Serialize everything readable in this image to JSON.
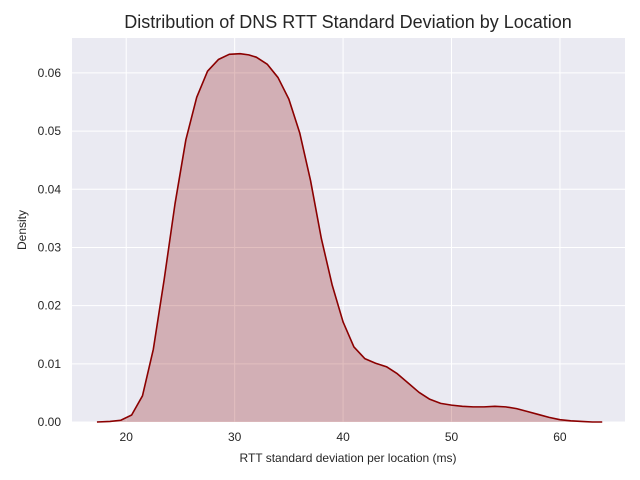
{
  "chart_data": {
    "type": "area",
    "title": "Distribution of DNS RTT Standard Deviation by Location",
    "xlabel": "RTT standard deviation per location (ms)",
    "ylabel": "Density",
    "xlim": [
      15,
      66
    ],
    "ylim": [
      0,
      0.066
    ],
    "xticks": [
      20,
      30,
      40,
      50,
      60
    ],
    "yticks": [
      0.0,
      0.01,
      0.02,
      0.03,
      0.04,
      0.05,
      0.06
    ],
    "ytick_labels": [
      "0.00",
      "0.01",
      "0.02",
      "0.03",
      "0.04",
      "0.05",
      "0.06"
    ],
    "grid": true,
    "series": [
      {
        "color": "#8b0000",
        "fill_color": "#8b0000",
        "x": [
          17.3,
          18.5,
          19.5,
          20.5,
          21.5,
          22.5,
          23.5,
          24.5,
          25.5,
          26.5,
          27.5,
          28.5,
          29.5,
          30.5,
          31.3,
          32.0,
          33.0,
          34.0,
          35.0,
          36.0,
          37.0,
          38.0,
          39.0,
          40.0,
          41.0,
          42.0,
          43.0,
          44.0,
          45.0,
          46.0,
          47.0,
          48.0,
          49.0,
          50.0,
          51.0,
          52.0,
          53.0,
          54.0,
          55.0,
          56.0,
          57.0,
          58.0,
          59.0,
          60.0,
          61.0,
          62.0,
          63.0,
          63.9
        ],
        "y": [
          0.0,
          0.0001,
          0.0003,
          0.0012,
          0.0045,
          0.0125,
          0.0245,
          0.0375,
          0.0485,
          0.0558,
          0.0603,
          0.0623,
          0.0632,
          0.0633,
          0.0631,
          0.0627,
          0.0615,
          0.0592,
          0.0555,
          0.0497,
          0.0415,
          0.0315,
          0.0235,
          0.0172,
          0.0129,
          0.0109,
          0.0101,
          0.0095,
          0.0083,
          0.0067,
          0.0051,
          0.0039,
          0.0032,
          0.0029,
          0.0027,
          0.0026,
          0.0026,
          0.0027,
          0.0026,
          0.0023,
          0.0018,
          0.0013,
          0.0008,
          0.0004,
          0.0002,
          0.0001,
          0.0,
          0.0
        ]
      }
    ]
  }
}
